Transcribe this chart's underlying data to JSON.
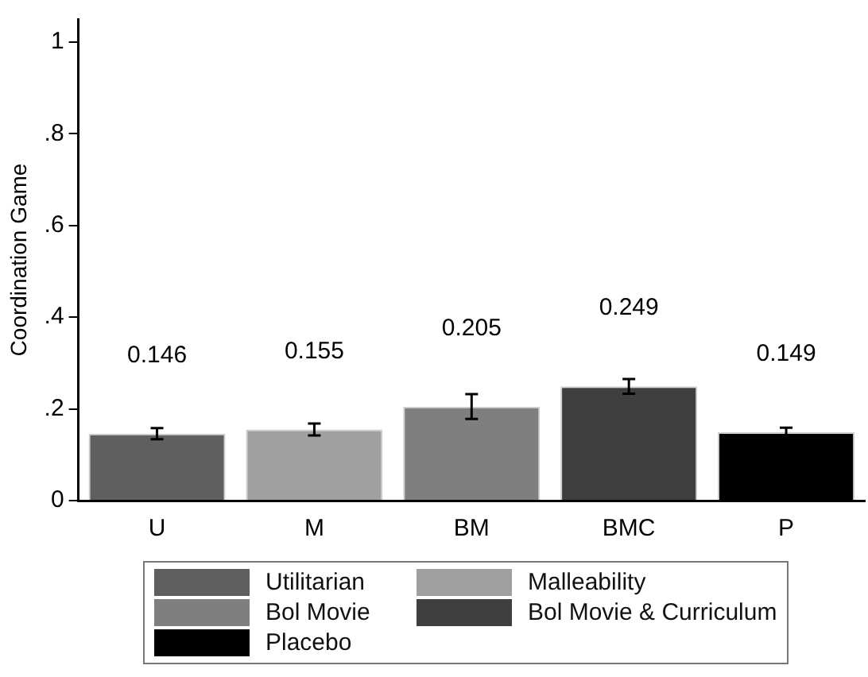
{
  "chart_data": {
    "type": "bar",
    "ylabel": "Coordination Game",
    "categories": [
      "U",
      "M",
      "BM",
      "BMC",
      "P"
    ],
    "series": [
      {
        "name": "Utilitarian",
        "color": "#5f5f5f",
        "values": [
          0.146,
          null,
          null,
          null,
          null
        ],
        "errors": [
          0.012,
          null,
          null,
          null,
          null
        ]
      },
      {
        "name": "Malleability",
        "color": "#a0a0a0",
        "values": [
          null,
          0.155,
          null,
          null,
          null
        ],
        "errors": [
          null,
          0.013,
          null,
          null,
          null
        ]
      },
      {
        "name": "Bol Movie",
        "color": "#7f7f7f",
        "values": [
          null,
          null,
          0.205,
          null,
          null
        ],
        "errors": [
          null,
          null,
          0.027,
          null,
          null
        ]
      },
      {
        "name": "Bol Movie & Curriculum",
        "color": "#3f3f3f",
        "values": [
          null,
          null,
          null,
          0.249,
          null
        ],
        "errors": [
          null,
          null,
          null,
          0.016,
          null
        ]
      },
      {
        "name": "Placebo",
        "color": "#000000",
        "values": [
          null,
          null,
          null,
          null,
          0.149
        ],
        "errors": [
          null,
          null,
          null,
          null,
          0.01
        ]
      }
    ],
    "ylim": [
      0,
      1.05
    ],
    "yticks": [
      0,
      {
        "value": 0.2,
        "label": ".2"
      },
      {
        "value": 0.4,
        "label": ".4"
      },
      {
        "value": 0.6,
        "label": ".6"
      },
      {
        "value": 0.8,
        "label": ".8"
      },
      {
        "value": 1,
        "label": "1"
      }
    ],
    "data_labels": true,
    "grid": false,
    "legend": "bottom"
  }
}
